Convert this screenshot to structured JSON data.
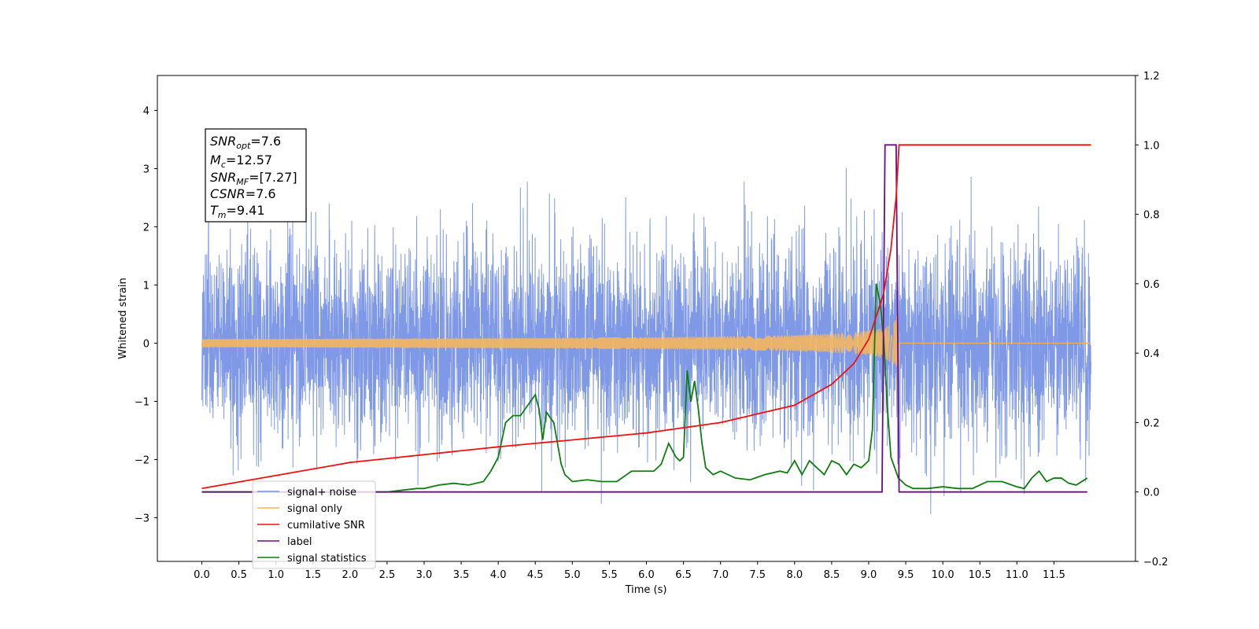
{
  "chart_data": {
    "type": "line",
    "xlabel": "Time (s)",
    "ylabel": "Whitened strain",
    "xlim": [
      -0.6,
      12.6
    ],
    "ylim": [
      -3.75,
      4.6
    ],
    "ylim_right": [
      -0.2,
      1.2
    ],
    "x_ticks": [
      "0.0",
      "0.5",
      "1.0",
      "1.5",
      "2.0",
      "2.5",
      "3.0",
      "3.5",
      "4.0",
      "4.5",
      "5.0",
      "5.5",
      "6.0",
      "6.5",
      "7.0",
      "7.5",
      "8.0",
      "8.5",
      "9.0",
      "9.5",
      "10.0",
      "10.5",
      "11.0",
      "11.5"
    ],
    "y_ticks_left": [
      "4",
      "3",
      "2",
      "1",
      "0",
      "−1",
      "−2",
      "−3"
    ],
    "y_ticks_right": [
      "1.2",
      "1.0",
      "0.8",
      "0.6",
      "0.4",
      "0.2",
      "0.0",
      "−0.2"
    ],
    "duration": 12,
    "merger_time": 9.41,
    "info_box": {
      "snr_opt": {
        "sym": "SNR",
        "sub": "opt",
        "val": "=7.6"
      },
      "mc": {
        "sym": "M",
        "sub": "c",
        "val": "=12.57"
      },
      "snr_mf": {
        "sym": "SNR",
        "sub": "MF",
        "val": "=[7.27]"
      },
      "csnr": {
        "sym": "CSNR",
        "sub": "",
        "val": "=7.6"
      },
      "tm": {
        "sym": "T",
        "sub": "m",
        "val": "=9.41"
      }
    },
    "series": [
      {
        "name": "signal+ noise",
        "color": "#7893e6",
        "axis": "left",
        "noise_sigma": 0.85
      },
      {
        "name": "signal only",
        "color": "#f5b65e",
        "axis": "left",
        "peak_amplitude": 0.75
      },
      {
        "name": "cumilative SNR",
        "color": "#ee1111",
        "axis": "right",
        "x": [
          0.0,
          2.0,
          4.0,
          6.0,
          7.0,
          8.0,
          8.5,
          8.8,
          9.0,
          9.2,
          9.3,
          9.37,
          9.41,
          12.0
        ],
        "y": [
          0.01,
          0.085,
          0.13,
          0.17,
          0.2,
          0.25,
          0.31,
          0.37,
          0.44,
          0.57,
          0.7,
          0.85,
          1.0,
          1.0
        ]
      },
      {
        "name": "label",
        "color": "#6a0d83",
        "axis": "right",
        "x": [
          0.0,
          9.18,
          9.22,
          9.37,
          9.41,
          11.95
        ],
        "y": [
          0.0,
          0.0,
          1.0,
          1.0,
          0.0,
          0.0
        ]
      },
      {
        "name": "signal statistics",
        "color": "#0f7d0f",
        "axis": "right",
        "x": [
          0.0,
          1.0,
          2.0,
          2.5,
          2.9,
          3.0,
          3.2,
          3.4,
          3.6,
          3.8,
          3.9,
          4.0,
          4.1,
          4.2,
          4.3,
          4.4,
          4.5,
          4.55,
          4.6,
          4.65,
          4.75,
          4.85,
          4.9,
          5.0,
          5.2,
          5.4,
          5.6,
          5.8,
          6.0,
          6.1,
          6.2,
          6.3,
          6.4,
          6.45,
          6.5,
          6.55,
          6.6,
          6.65,
          6.7,
          6.75,
          6.8,
          6.9,
          7.0,
          7.2,
          7.4,
          7.6,
          7.8,
          7.9,
          8.0,
          8.1,
          8.2,
          8.3,
          8.4,
          8.5,
          8.6,
          8.7,
          8.8,
          8.9,
          9.0,
          9.05,
          9.1,
          9.15,
          9.2,
          9.25,
          9.3,
          9.35,
          9.4,
          9.5,
          9.6,
          9.8,
          10.0,
          10.2,
          10.4,
          10.6,
          10.8,
          11.0,
          11.1,
          11.2,
          11.3,
          11.4,
          11.5,
          11.6,
          11.7,
          11.8,
          11.95
        ],
        "y": [
          0.0,
          0.0,
          0.0,
          0.0,
          0.01,
          0.01,
          0.02,
          0.025,
          0.02,
          0.03,
          0.06,
          0.1,
          0.2,
          0.22,
          0.22,
          0.25,
          0.28,
          0.24,
          0.15,
          0.23,
          0.2,
          0.08,
          0.05,
          0.03,
          0.035,
          0.03,
          0.03,
          0.06,
          0.06,
          0.06,
          0.08,
          0.14,
          0.1,
          0.09,
          0.1,
          0.35,
          0.26,
          0.32,
          0.24,
          0.14,
          0.07,
          0.05,
          0.06,
          0.04,
          0.035,
          0.05,
          0.06,
          0.055,
          0.09,
          0.05,
          0.09,
          0.07,
          0.05,
          0.09,
          0.08,
          0.05,
          0.08,
          0.07,
          0.09,
          0.18,
          0.6,
          0.55,
          0.45,
          0.25,
          0.1,
          0.07,
          0.04,
          0.02,
          0.01,
          0.01,
          0.015,
          0.01,
          0.01,
          0.03,
          0.03,
          0.015,
          0.01,
          0.04,
          0.06,
          0.03,
          0.04,
          0.04,
          0.025,
          0.02,
          0.04
        ]
      }
    ],
    "legend": {
      "placement": "lower-left",
      "entries": [
        {
          "label": "signal+ noise",
          "color": "#7893e6"
        },
        {
          "label": "signal only",
          "color": "#f5b65e"
        },
        {
          "label": "cumilative SNR",
          "color": "#ee1111"
        },
        {
          "label": "label",
          "color": "#6a0d83"
        },
        {
          "label": "signal statistics",
          "color": "#0f7d0f"
        }
      ]
    }
  }
}
